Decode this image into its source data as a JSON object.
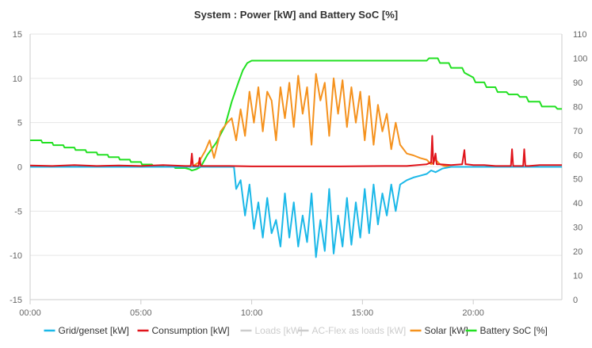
{
  "chart_data": {
    "type": "line",
    "title": "System : Power [kW] and Battery SoC [%]",
    "x_ticks": [
      "00:00",
      "05:00",
      "10:00",
      "15:00",
      "20:00"
    ],
    "x_tick_hours": [
      0,
      5,
      10,
      15,
      20
    ],
    "xlim_hours": [
      0,
      24
    ],
    "y_left_ticks": [
      "15",
      "10",
      "5",
      "0",
      "-5",
      "-10",
      "-15"
    ],
    "y_left_lim": [
      -15,
      15
    ],
    "y_right_ticks": [
      "110",
      "100",
      "90",
      "80",
      "70",
      "60",
      "50",
      "40",
      "30",
      "20",
      "10",
      "0"
    ],
    "y_right_lim": [
      0,
      110
    ],
    "grid": "horizontal",
    "legend_position": "bottom",
    "legend": [
      {
        "name": "Grid/genset [kW]",
        "color": "#1bb8e8",
        "disabled": false
      },
      {
        "name": "Consumption [kW]",
        "color": "#e0141b",
        "disabled": false
      },
      {
        "name": "Loads [kW]",
        "color": "#cccccc",
        "disabled": true
      },
      {
        "name": "AC-Flex as loads [kW]",
        "color": "#cccccc",
        "disabled": true
      },
      {
        "name": "Solar [kW]",
        "color": "#f5921e",
        "disabled": false
      },
      {
        "name": "Battery SoC [%]",
        "color": "#22e022",
        "disabled": false
      }
    ],
    "series": [
      {
        "key": "soc",
        "axis": "right",
        "color": "#22e022",
        "x": [
          0,
          0.5,
          0.55,
          1.0,
          1.05,
          1.5,
          1.55,
          2.0,
          2.05,
          2.5,
          2.55,
          3.0,
          3.05,
          3.5,
          3.55,
          4.0,
          4.05,
          4.5,
          4.55,
          5.0,
          5.05,
          5.5,
          5.55,
          6.0,
          6.05,
          6.5,
          6.55,
          7.0,
          7.2,
          7.3,
          7.5,
          7.7,
          8.0,
          8.4,
          8.8,
          9.1,
          9.4,
          9.6,
          9.8,
          10.0,
          11.0,
          12.0,
          13.0,
          14.0,
          15.0,
          16.0,
          17.0,
          17.9,
          18.0,
          18.4,
          18.5,
          18.9,
          19.0,
          19.5,
          19.6,
          20.0,
          20.1,
          20.5,
          20.6,
          21.0,
          21.1,
          21.5,
          21.6,
          22.0,
          22.1,
          22.4,
          22.5,
          23.0,
          23.1,
          23.7,
          23.8,
          24.0
        ],
        "y": [
          66,
          66,
          65,
          65,
          64,
          64,
          63,
          63,
          62,
          62,
          61,
          61,
          60,
          60,
          59,
          59,
          58,
          58,
          57,
          57,
          56,
          56,
          55.5,
          55.5,
          55,
          55,
          54.5,
          54.5,
          54,
          53.5,
          54,
          55,
          60,
          65,
          72,
          82,
          90,
          95,
          98,
          99,
          99,
          99,
          99,
          99,
          99,
          99,
          99,
          99,
          100,
          100,
          98,
          98,
          96,
          96,
          94,
          92,
          90,
          90,
          88,
          88,
          86,
          86,
          85,
          85,
          84,
          84,
          82,
          82,
          80,
          80,
          79,
          79
        ]
      },
      {
        "key": "solar",
        "axis": "left",
        "color": "#f5921e",
        "x": [
          0,
          7.3,
          7.6,
          7.9,
          8.1,
          8.3,
          8.6,
          8.9,
          9.1,
          9.3,
          9.5,
          9.7,
          9.9,
          10.1,
          10.3,
          10.5,
          10.7,
          10.9,
          11.1,
          11.3,
          11.5,
          11.7,
          11.9,
          12.1,
          12.3,
          12.5,
          12.7,
          12.9,
          13.1,
          13.3,
          13.5,
          13.7,
          13.9,
          14.1,
          14.3,
          14.5,
          14.7,
          14.9,
          15.1,
          15.3,
          15.5,
          15.7,
          15.9,
          16.1,
          16.3,
          16.5,
          16.7,
          17.0,
          17.3,
          17.6,
          17.9,
          18.1,
          18.3,
          18.5,
          18.7,
          19.0,
          24.0
        ],
        "y": [
          0,
          0,
          0.5,
          1.8,
          3.0,
          1.0,
          4.0,
          5.0,
          5.5,
          3.0,
          6.5,
          3.5,
          8.5,
          5.0,
          9.0,
          4.0,
          8.5,
          7.5,
          3.0,
          9.0,
          5.5,
          9.5,
          4.5,
          10.3,
          6.0,
          9.0,
          2.5,
          10.5,
          7.5,
          9.5,
          3.5,
          10.0,
          6.0,
          9.8,
          4.5,
          9.0,
          5.0,
          8.5,
          3.0,
          8.0,
          2.5,
          7.0,
          4.0,
          6.0,
          2.0,
          5.0,
          2.5,
          1.5,
          1.3,
          1.0,
          0.8,
          0.3,
          0.8,
          0.3,
          0.1,
          0,
          0
        ]
      },
      {
        "key": "grid",
        "axis": "left",
        "color": "#1bb8e8",
        "x": [
          0,
          9.2,
          9.3,
          9.5,
          9.7,
          9.9,
          10.1,
          10.3,
          10.5,
          10.7,
          10.9,
          11.1,
          11.3,
          11.5,
          11.7,
          11.9,
          12.1,
          12.3,
          12.5,
          12.7,
          12.9,
          13.1,
          13.3,
          13.5,
          13.7,
          13.9,
          14.1,
          14.3,
          14.5,
          14.7,
          14.9,
          15.1,
          15.3,
          15.5,
          15.7,
          15.9,
          16.1,
          16.3,
          16.5,
          16.7,
          17.0,
          17.3,
          17.6,
          17.9,
          18.1,
          18.3,
          18.6,
          19.0,
          24.0
        ],
        "y": [
          0,
          0,
          -2.5,
          -1.5,
          -5.5,
          -2.0,
          -7.0,
          -4.0,
          -8.0,
          -3.5,
          -7.5,
          -6.0,
          -9.0,
          -3.0,
          -8.0,
          -4.0,
          -9.0,
          -5.5,
          -8.5,
          -3.0,
          -10.2,
          -6.0,
          -9.5,
          -2.5,
          -9.8,
          -5.5,
          -9.0,
          -3.5,
          -8.8,
          -4.0,
          -8.0,
          -2.5,
          -7.5,
          -2.0,
          -6.5,
          -3.0,
          -5.5,
          -2.0,
          -5.0,
          -2.0,
          -1.5,
          -1.2,
          -1.0,
          -0.8,
          -0.4,
          -0.6,
          -0.2,
          0,
          0
        ]
      },
      {
        "key": "consumption",
        "axis": "left",
        "color": "#e0141b",
        "x": [
          0,
          1.0,
          2.0,
          3.0,
          4.0,
          5.0,
          6.0,
          7.0,
          7.25,
          7.3,
          7.35,
          7.5,
          7.6,
          7.65,
          7.7,
          8.0,
          9.0,
          10.0,
          12.0,
          14.0,
          16.0,
          17.0,
          17.9,
          18.1,
          18.15,
          18.2,
          18.3,
          18.35,
          18.5,
          19.0,
          19.5,
          19.6,
          19.65,
          19.7,
          20.0,
          20.5,
          21.0,
          21.7,
          21.75,
          21.8,
          22.0,
          22.25,
          22.3,
          22.35,
          22.5,
          23.0,
          24.0
        ],
        "y": [
          0.15,
          0.1,
          0.2,
          0.1,
          0.15,
          0.1,
          0.2,
          0.1,
          0.1,
          1.5,
          0.1,
          0.1,
          0.1,
          1.0,
          0.1,
          0.1,
          0.1,
          0.05,
          0.05,
          0.05,
          0.1,
          0.1,
          0.3,
          0.5,
          3.5,
          0.3,
          1.5,
          0.3,
          0.3,
          0.2,
          0.3,
          1.9,
          0.3,
          0.3,
          0.2,
          0.2,
          0.1,
          0.1,
          2.0,
          0.1,
          0.1,
          0.1,
          2.0,
          0.1,
          0.1,
          0.2,
          0.2
        ]
      }
    ]
  }
}
